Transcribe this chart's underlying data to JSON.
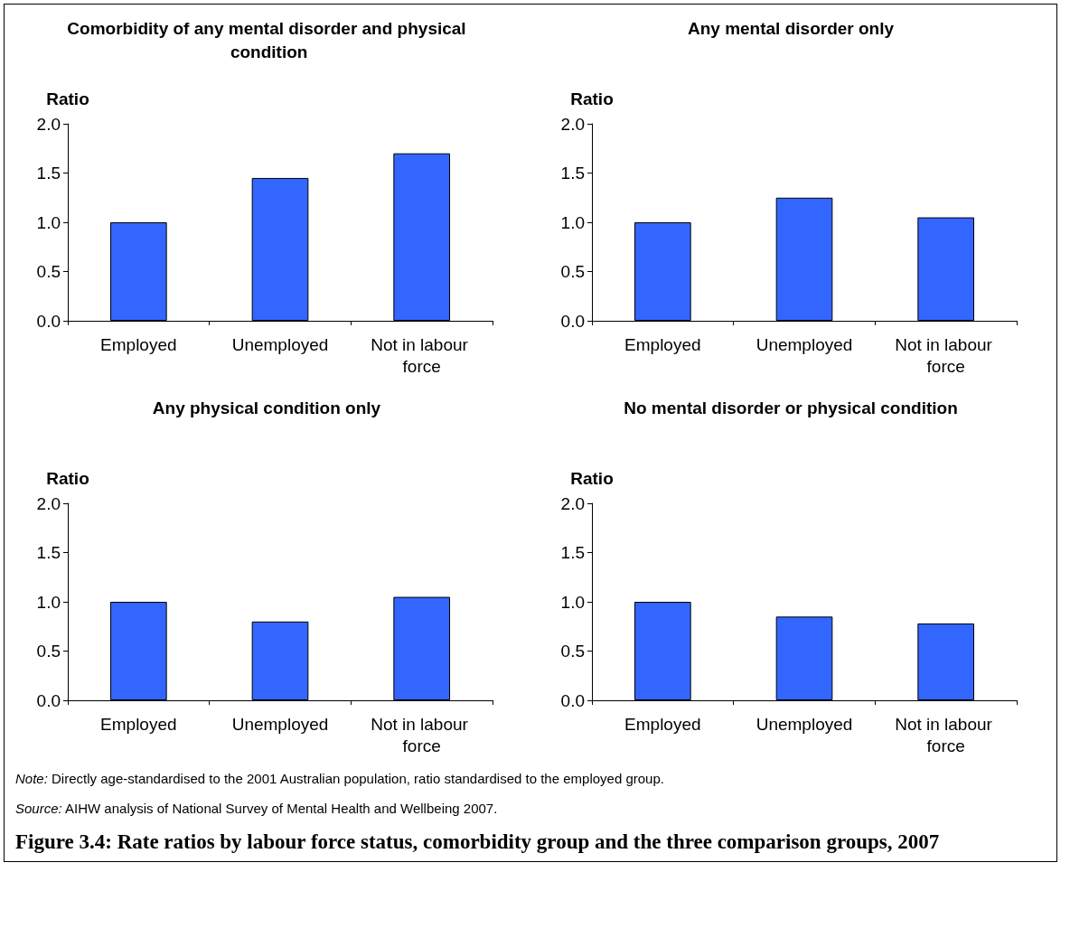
{
  "chart_data": [
    {
      "type": "bar",
      "title": "Comorbidity of any mental disorder and physical condition",
      "ylabel": "Ratio",
      "categories": [
        "Employed",
        "Unemployed",
        "Not in labour force"
      ],
      "values": [
        1.0,
        1.45,
        1.7
      ],
      "color": "#3366ff",
      "ylim": [
        0,
        2
      ],
      "yticks": [
        {
          "value": 0,
          "label": "0.0"
        },
        {
          "value": 0.5,
          "label": "0.5"
        },
        {
          "value": 1,
          "label": "1.0"
        },
        {
          "value": 1.5,
          "label": "1.5"
        },
        {
          "value": 2,
          "label": "2.0"
        }
      ]
    },
    {
      "type": "bar",
      "title": "Any mental disorder only",
      "ylabel": "Ratio",
      "categories": [
        "Employed",
        "Unemployed",
        "Not in labour force"
      ],
      "values": [
        1.0,
        1.25,
        1.05
      ],
      "color": "#3366ff",
      "ylim": [
        0,
        2
      ],
      "yticks": [
        {
          "value": 0,
          "label": "0.0"
        },
        {
          "value": 0.5,
          "label": "0.5"
        },
        {
          "value": 1,
          "label": "1.0"
        },
        {
          "value": 1.5,
          "label": "1.5"
        },
        {
          "value": 2,
          "label": "2.0"
        }
      ]
    },
    {
      "type": "bar",
      "title": "Any physical condition only",
      "ylabel": "Ratio",
      "categories": [
        "Employed",
        "Unemployed",
        "Not in labour force"
      ],
      "values": [
        1.0,
        0.8,
        1.05
      ],
      "color": "#3366ff",
      "ylim": [
        0,
        2
      ],
      "yticks": [
        {
          "value": 0,
          "label": "0.0"
        },
        {
          "value": 0.5,
          "label": "0.5"
        },
        {
          "value": 1,
          "label": "1.0"
        },
        {
          "value": 1.5,
          "label": "1.5"
        },
        {
          "value": 2,
          "label": "2.0"
        }
      ]
    },
    {
      "type": "bar",
      "title": "No mental disorder or physical condition",
      "ylabel": "Ratio",
      "categories": [
        "Employed",
        "Unemployed",
        "Not in labour force"
      ],
      "values": [
        1.0,
        0.85,
        0.78
      ],
      "color": "#3366ff",
      "ylim": [
        0,
        2
      ],
      "yticks": [
        {
          "value": 0,
          "label": "0.0"
        },
        {
          "value": 0.5,
          "label": "0.5"
        },
        {
          "value": 1,
          "label": "1.0"
        },
        {
          "value": 1.5,
          "label": "1.5"
        },
        {
          "value": 2,
          "label": "2.0"
        }
      ],
      "annotations": [
        "Note: Directly age-standardised to the 2001 Australian population, ratio standardised to the employed group.",
        "Source: AIHW analysis of National Survey of Mental Health and Wellbeing 2007.",
        "Figure 3.4: Rate ratios by labour force status, comorbidity group and the three comparison groups, 2007"
      ]
    }
  ]
}
